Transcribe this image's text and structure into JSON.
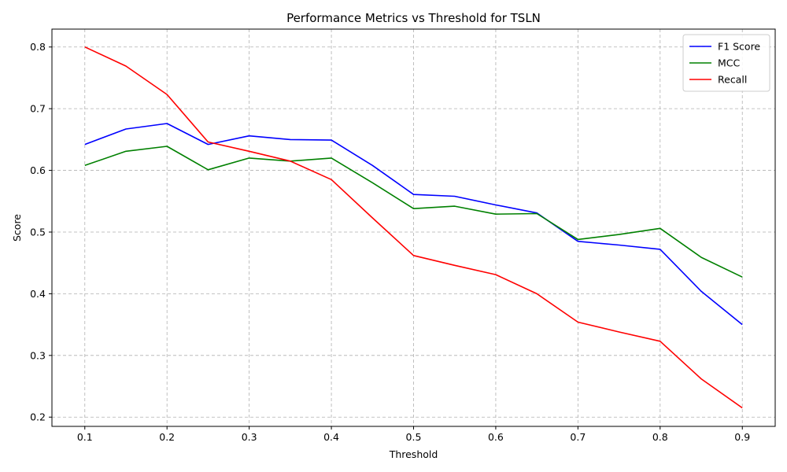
{
  "chart_data": {
    "type": "line",
    "title": "Performance Metrics vs Threshold for TSLN",
    "xlabel": "Threshold",
    "ylabel": "Score",
    "x": [
      0.1,
      0.15,
      0.2,
      0.25,
      0.3,
      0.35,
      0.4,
      0.45,
      0.5,
      0.55,
      0.6,
      0.65,
      0.7,
      0.75,
      0.8,
      0.85,
      0.9
    ],
    "xticks": [
      "0.1",
      "0.2",
      "0.3",
      "0.4",
      "0.5",
      "0.6",
      "0.7",
      "0.8",
      "0.9"
    ],
    "yticks": [
      "0.2",
      "0.3",
      "0.4",
      "0.5",
      "0.6",
      "0.7",
      "0.8"
    ],
    "xlim": [
      0.06,
      0.94
    ],
    "ylim": [
      0.185,
      0.829
    ],
    "grid": true,
    "legend_position": "top-right",
    "series": [
      {
        "name": "F1 Score",
        "color": "#0000ff",
        "values": [
          0.642,
          0.667,
          0.676,
          0.642,
          0.656,
          0.65,
          0.649,
          0.608,
          0.561,
          0.558,
          0.544,
          0.531,
          0.485,
          0.479,
          0.472,
          0.404,
          0.35
        ]
      },
      {
        "name": "MCC",
        "color": "#008000",
        "values": [
          0.608,
          0.631,
          0.639,
          0.601,
          0.62,
          0.615,
          0.62,
          0.58,
          0.538,
          0.542,
          0.529,
          0.53,
          0.488,
          0.496,
          0.506,
          0.459,
          0.427
        ]
      },
      {
        "name": "Recall",
        "color": "#ff0000",
        "values": [
          0.8,
          0.769,
          0.723,
          0.646,
          0.631,
          0.615,
          0.585,
          0.523,
          0.462,
          0.446,
          0.431,
          0.4,
          0.354,
          0.338,
          0.323,
          0.262,
          0.215
        ]
      }
    ]
  }
}
